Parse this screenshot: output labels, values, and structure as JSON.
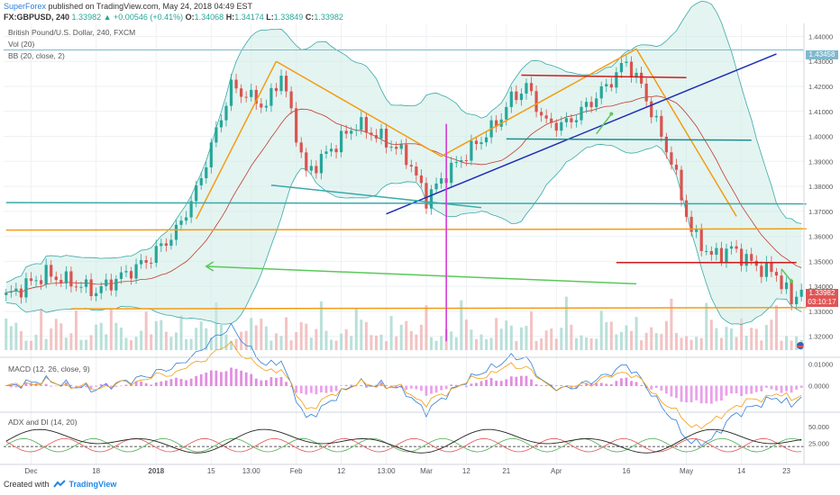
{
  "header": {
    "publisher": "SuperForex",
    "published_text": "published on TradingView.com, May 24, 2018 04:49 EST",
    "symbol": "FX:GBPUSD, 240",
    "last": "1.33982",
    "change_arrow": "▲",
    "change": "+0.00546 (+0.41%)",
    "open_label": "O:",
    "open": "1.34068",
    "high_label": "H:",
    "high": "1.34174",
    "low_label": "L:",
    "low": "1.33849",
    "close_label": "C:",
    "close": "1.33982"
  },
  "legend": {
    "title": "British Pound/U.S. Dollar, 240, FXCM",
    "volume": "Vol (20)",
    "bollinger": "BB (20, close, 2)",
    "macd": "MACD (12, 26, close, 9)",
    "adx": "ADX and DI (14, 20)"
  },
  "footer": {
    "created_with": "Created with",
    "brand": "TradingView"
  },
  "chart_data": {
    "type": "line",
    "series_kind": "candlestick",
    "symbol": "GBPUSD",
    "timeframe": "240",
    "price_axis": {
      "range": [
        1.3145,
        1.4452
      ],
      "ticks": [
        "1.44000",
        "1.43000",
        "1.42000",
        "1.41000",
        "1.40000",
        "1.39000",
        "1.38000",
        "1.37000",
        "1.36000",
        "1.35000",
        "1.34000",
        "1.33000",
        "1.32000"
      ],
      "tick_values": [
        1.44,
        1.43,
        1.42,
        1.41,
        1.4,
        1.39,
        1.38,
        1.37,
        1.36,
        1.35,
        1.34,
        1.33,
        1.32
      ],
      "highlight_label": "1.43458",
      "last_label": "1.33982",
      "countdown_label": "03:10:17"
    },
    "time_axis": {
      "labels": [
        "Dec",
        "18",
        "2018",
        "15",
        "13:00",
        "Feb",
        "12",
        "13:00",
        "Mar",
        "12",
        "21",
        "Apr",
        "16",
        "May",
        "14",
        "23"
      ],
      "label_index": [
        5,
        18,
        30,
        41,
        49,
        58,
        67,
        76,
        84,
        92,
        100,
        110,
        124,
        136,
        147,
        156
      ]
    },
    "bars": 160,
    "price_path": {
      "index": [
        0,
        8,
        18,
        28,
        34,
        38,
        45,
        52,
        55,
        60,
        65,
        70,
        76,
        80,
        84,
        88,
        93,
        98,
        101,
        104,
        108,
        112,
        116,
        120,
        124,
        127,
        130,
        133,
        137,
        141,
        145,
        150,
        154,
        157,
        159
      ],
      "close": [
        1.336,
        1.345,
        1.338,
        1.35,
        1.362,
        1.378,
        1.42,
        1.412,
        1.425,
        1.385,
        1.395,
        1.405,
        1.398,
        1.392,
        1.375,
        1.385,
        1.395,
        1.405,
        1.415,
        1.42,
        1.405,
        1.405,
        1.412,
        1.42,
        1.43,
        1.42,
        1.405,
        1.39,
        1.362,
        1.352,
        1.355,
        1.348,
        1.345,
        1.334,
        1.3398
      ]
    },
    "macd": {
      "range": [
        -0.0115,
        0.0115
      ],
      "ticks": [
        "0.01000",
        "0.0000"
      ],
      "tick_values": [
        0.01,
        0.0
      ]
    },
    "adx": {
      "range": [
        0,
        70
      ],
      "ticks": [
        "50.000",
        "25.000"
      ],
      "tick_values": [
        50,
        25
      ]
    },
    "drawings": {
      "lines": [
        {
          "color": "#f39c12",
          "from": [
            38,
            1.367
          ],
          "to": [
            54,
            1.43
          ]
        },
        {
          "color": "#f39c12",
          "from": [
            54,
            1.43
          ],
          "to": [
            87,
            1.392
          ]
        },
        {
          "color": "#f39c12",
          "from": [
            87,
            1.392
          ],
          "to": [
            126,
            1.435
          ]
        },
        {
          "color": "#f39c12",
          "from": [
            126,
            1.435
          ],
          "to": [
            146,
            1.368
          ]
        },
        {
          "color": "#f39c12",
          "from": [
            0,
            1.3625
          ],
          "to": [
            160,
            1.363
          ]
        },
        {
          "color": "#f39c12",
          "from": [
            13,
            1.331
          ],
          "to": [
            160,
            1.3315
          ]
        },
        {
          "color": "#1f2fb5",
          "from": [
            76,
            1.369
          ],
          "to": [
            154,
            1.433
          ]
        },
        {
          "color": "#d01b1b",
          "from": [
            103,
            1.4245
          ],
          "to": [
            136,
            1.4235
          ]
        },
        {
          "color": "#d01b1b",
          "from": [
            122,
            1.3495
          ],
          "to": [
            158,
            1.3495
          ]
        },
        {
          "color": "#1a8f8f",
          "from": [
            100,
            1.399
          ],
          "to": [
            149,
            1.3985
          ]
        },
        {
          "color": "#3aa9a9",
          "from": [
            0,
            1.3735
          ],
          "to": [
            160,
            1.373
          ]
        },
        {
          "color": "#3aa9a9",
          "from": [
            53,
            1.3805
          ],
          "to": [
            95,
            1.3715
          ]
        },
        {
          "color": "#59c959",
          "from": [
            40,
            1.348
          ],
          "to": [
            126,
            1.341
          ],
          "arrow": "start"
        },
        {
          "color": "#d63cd6",
          "from": [
            88,
            1.405
          ],
          "to": [
            88,
            1.318
          ],
          "vertical": true
        }
      ],
      "horizontal_marker": {
        "value": 1.43458,
        "color": "#7fb8ce"
      },
      "small_arrows": [
        {
          "color": "#59c959",
          "from": [
            118,
            1.401
          ],
          "to": [
            121,
            1.409
          ]
        },
        {
          "color": "#59c959",
          "from": [
            155,
            1.347
          ],
          "to": [
            157,
            1.342
          ]
        }
      ]
    }
  }
}
